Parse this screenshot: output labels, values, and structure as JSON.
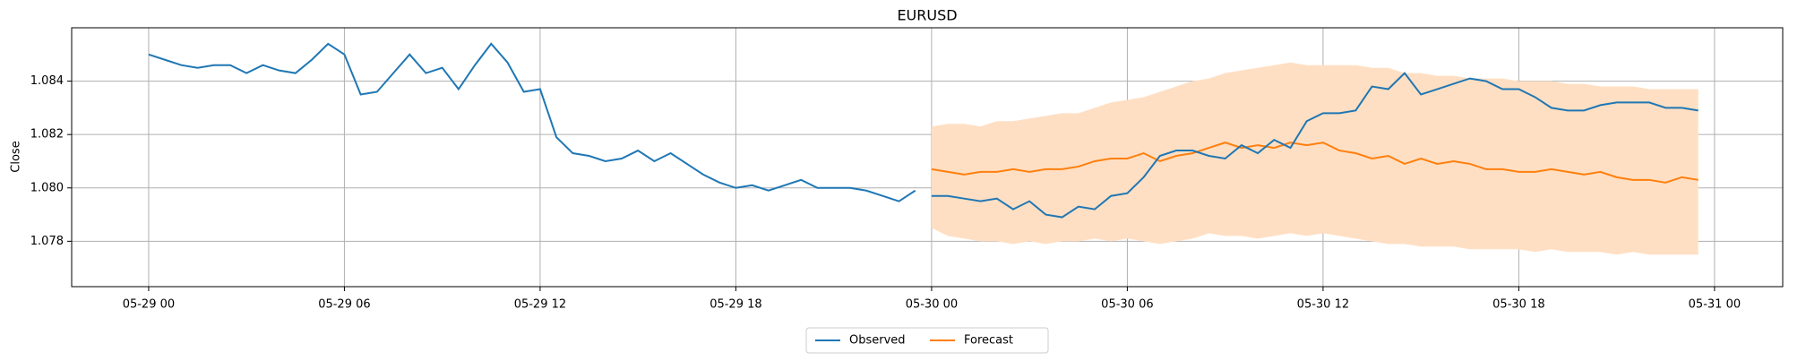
{
  "chart_data": {
    "type": "line",
    "title": "EURUSD",
    "y_label": "Close",
    "xlim": [
      -2.36,
      50.09
    ],
    "xticks": [
      {
        "value": 0,
        "label": "05-29 00"
      },
      {
        "value": 6,
        "label": "05-29 06"
      },
      {
        "value": 12,
        "label": "05-29 12"
      },
      {
        "value": 18,
        "label": "05-29 18"
      },
      {
        "value": 24,
        "label": "05-30 00"
      },
      {
        "value": 30,
        "label": "05-30 06"
      },
      {
        "value": 36,
        "label": "05-30 12"
      },
      {
        "value": 42,
        "label": "05-30 18"
      },
      {
        "value": 48,
        "label": "05-31 00"
      }
    ],
    "ylim": [
      1.0763,
      1.086
    ],
    "yticks": [
      1.078,
      {
        "value": 1.08,
        "label": "1.080"
      },
      1.082,
      1.084
    ],
    "grid": true,
    "legend": "lower center outside",
    "series": [
      {
        "name": "Observed",
        "color": "#1f77b4",
        "x": [
          0,
          0.5,
          1,
          1.5,
          2,
          2.5,
          3,
          3.5,
          4,
          4.5,
          5,
          5.5,
          6,
          6.5,
          7,
          7.5,
          8,
          8.5,
          9,
          9.5,
          10,
          10.5,
          11,
          11.5,
          12,
          12.5,
          13,
          13.5,
          14,
          14.5,
          15,
          15.5,
          16,
          16.5,
          17,
          17.5,
          18,
          18.5,
          19,
          19.5,
          20,
          20.5,
          21,
          21.5,
          22,
          22.5,
          23,
          23.5,
          23.75,
          24,
          24.5,
          25,
          25.5,
          26,
          26.5,
          27,
          27.5,
          28,
          28.5,
          29,
          29.5,
          30,
          30.5,
          31,
          31.5,
          32,
          32.5,
          33,
          33.5,
          34,
          34.5,
          35,
          35.5,
          36,
          36.5,
          37,
          37.5,
          38,
          38.5,
          39,
          39.5,
          40,
          40.5,
          41,
          41.5,
          42,
          42.5,
          43,
          43.5,
          44,
          44.5,
          45,
          45.5,
          46,
          46.5,
          47,
          47.5
        ],
        "values": [
          1.085,
          1.0848,
          1.0846,
          1.0845,
          1.0846,
          1.0846,
          1.0843,
          1.0846,
          1.0844,
          1.0843,
          1.0848,
          1.0854,
          1.085,
          1.0835,
          1.0836,
          1.0843,
          1.085,
          1.0843,
          1.0845,
          1.0837,
          1.0846,
          1.0854,
          1.0847,
          1.0836,
          1.0837,
          1.0819,
          1.0813,
          1.0812,
          1.081,
          1.0811,
          1.0814,
          1.081,
          1.0813,
          1.0809,
          1.0805,
          1.0802,
          1.08,
          1.0801,
          1.0799,
          1.0801,
          1.0803,
          1.08,
          1.08,
          1.08,
          1.0799,
          1.0797,
          1.0795,
          1.0799,
          null,
          1.0797,
          1.0797,
          1.0796,
          1.0795,
          1.0796,
          1.0792,
          1.0795,
          1.079,
          1.0789,
          1.0793,
          1.0792,
          1.0797,
          1.0798,
          1.0804,
          1.0812,
          1.0814,
          1.0814,
          1.0812,
          1.0811,
          1.0816,
          1.0813,
          1.0818,
          1.0815,
          1.0825,
          1.0828,
          1.0828,
          1.0829,
          1.0838,
          1.0837,
          1.0843,
          1.0835,
          1.0837,
          1.0839,
          1.0841,
          1.084,
          1.0837,
          1.0837,
          1.0834,
          1.083,
          1.0829,
          1.0829,
          1.0831,
          1.0832,
          1.0832,
          1.0832,
          1.083,
          1.083,
          1.0829
        ]
      },
      {
        "name": "Forecast",
        "color": "#ff7f0e",
        "band_color": "#ffdfc3",
        "x": [
          24,
          24.5,
          25,
          25.5,
          26,
          26.5,
          27,
          27.5,
          28,
          28.5,
          29,
          29.5,
          30,
          30.5,
          31,
          31.5,
          32,
          32.5,
          33,
          33.5,
          34,
          34.5,
          35,
          35.5,
          36,
          36.5,
          37,
          37.5,
          38,
          38.5,
          39,
          39.5,
          40,
          40.5,
          41,
          41.5,
          42,
          42.5,
          43,
          43.5,
          44,
          44.5,
          45,
          45.5,
          46,
          46.5,
          47,
          47.5
        ],
        "values": [
          1.0807,
          1.0806,
          1.0805,
          1.0806,
          1.0806,
          1.0807,
          1.0806,
          1.0807,
          1.0807,
          1.0808,
          1.081,
          1.0811,
          1.0811,
          1.0813,
          1.081,
          1.0812,
          1.0813,
          1.0815,
          1.0817,
          1.0815,
          1.0816,
          1.0815,
          1.0817,
          1.0816,
          1.0817,
          1.0814,
          1.0813,
          1.0811,
          1.0812,
          1.0809,
          1.0811,
          1.0809,
          1.081,
          1.0809,
          1.0807,
          1.0807,
          1.0806,
          1.0806,
          1.0807,
          1.0806,
          1.0805,
          1.0806,
          1.0804,
          1.0803,
          1.0803,
          1.0802,
          1.0804,
          1.0803
        ],
        "lower": [
          1.0785,
          1.0782,
          1.0781,
          1.078,
          1.078,
          1.0779,
          1.078,
          1.0779,
          1.078,
          1.078,
          1.0781,
          1.078,
          1.0781,
          1.078,
          1.0779,
          1.078,
          1.0781,
          1.0783,
          1.0782,
          1.0782,
          1.0781,
          1.0782,
          1.0783,
          1.0782,
          1.0783,
          1.0782,
          1.0781,
          1.078,
          1.0779,
          1.0779,
          1.0778,
          1.0778,
          1.0778,
          1.0777,
          1.0777,
          1.0777,
          1.0777,
          1.0776,
          1.0777,
          1.0776,
          1.0776,
          1.0776,
          1.0775,
          1.0776,
          1.0775,
          1.0775,
          1.0775,
          1.0775
        ],
        "upper": [
          1.0823,
          1.0824,
          1.0824,
          1.0823,
          1.0825,
          1.0825,
          1.0826,
          1.0827,
          1.0828,
          1.0828,
          1.083,
          1.0832,
          1.0833,
          1.0834,
          1.0836,
          1.0838,
          1.084,
          1.0841,
          1.0843,
          1.0844,
          1.0845,
          1.0846,
          1.0847,
          1.0846,
          1.0846,
          1.0846,
          1.0846,
          1.0845,
          1.0845,
          1.0843,
          1.0843,
          1.0842,
          1.0842,
          1.0841,
          1.0841,
          1.0841,
          1.084,
          1.084,
          1.084,
          1.0839,
          1.0839,
          1.0838,
          1.0838,
          1.0838,
          1.0837,
          1.0837,
          1.0837,
          1.0837
        ]
      }
    ]
  }
}
